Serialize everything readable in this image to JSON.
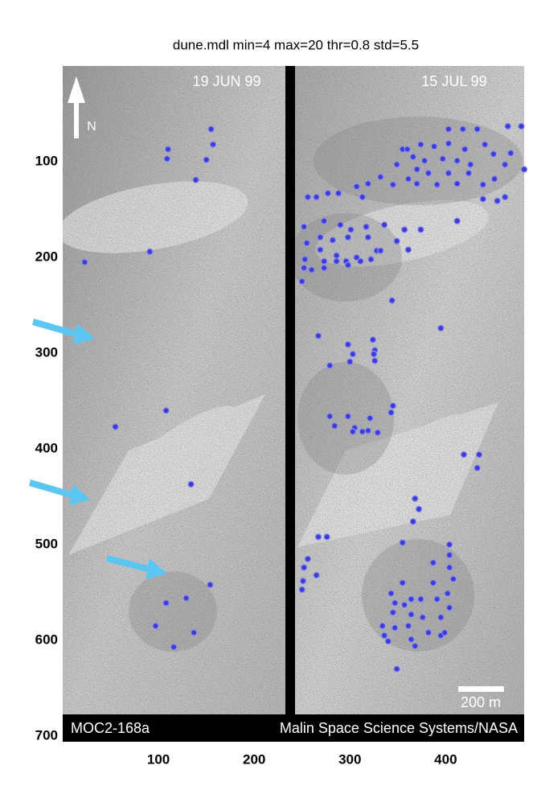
{
  "chart_data": {
    "type": "scatter",
    "title": "dune.mdl min=4 max=20 thr=0.8 std=5.5",
    "annotations": [
      "19 JUN 99",
      "15 JUL 99",
      "N",
      "200 m",
      "MOC2-168a",
      "Malin Space Science Systems/NASA"
    ],
    "xlim": [
      0,
      482
    ],
    "ylim": [
      706,
      0
    ],
    "xticks": [
      100,
      200,
      300,
      400
    ],
    "yticks": [
      100,
      200,
      300,
      400,
      500,
      600,
      700
    ],
    "grid": false,
    "x": [
      155,
      157,
      110,
      109,
      150,
      139,
      91,
      23,
      108,
      55,
      134,
      154,
      108,
      129,
      97,
      137,
      116,
      403,
      418,
      433,
      465,
      479,
      374,
      388,
      403,
      420,
      441,
      468,
      355,
      360,
      366,
      378,
      397,
      412,
      426,
      450,
      462,
      482,
      349,
      370,
      382,
      403,
      424,
      361,
      370,
      391,
      412,
      439,
      451,
      345,
      332,
      319,
      307,
      288,
      277,
      265,
      256,
      313,
      439,
      454,
      462,
      412,
      252,
      273,
      290,
      301,
      317,
      336,
      357,
      374,
      269,
      282,
      298,
      319,
      349,
      361,
      255,
      269,
      286,
      307,
      328,
      253,
      273,
      296,
      311,
      322,
      332,
      252,
      260,
      273,
      286,
      298,
      250,
      395,
      344,
      267,
      298,
      324,
      326,
      303,
      300,
      325,
      326,
      279,
      345,
      343,
      279,
      298,
      305,
      321,
      284,
      303,
      313,
      319,
      329,
      419,
      435,
      433,
      368,
      372,
      366,
      276,
      267,
      256,
      252,
      265,
      251,
      250,
      355,
      404,
      387,
      404,
      404,
      387,
      408,
      402,
      343,
      355,
      364,
      347,
      357,
      374,
      391,
      404,
      345,
      364,
      376,
      395,
      334,
      347,
      361,
      336,
      340,
      364,
      382,
      395,
      399,
      368,
      349
    ],
    "series": [
      {
        "color": "#3c3cd6",
        "values": [
          66,
          82,
          87,
          97,
          98,
          119,
          194,
          205,
          360,
          377,
          437,
          542,
          561,
          556,
          585,
          592,
          607,
          66,
          66,
          66,
          63,
          63,
          82,
          84,
          81,
          87,
          82,
          91,
          87,
          87,
          95,
          99,
          97,
          99,
          103,
          92,
          103,
          108,
          103,
          108,
          112,
          112,
          112,
          118,
          123,
          124,
          123,
          124,
          118,
          124,
          116,
          123,
          126,
          133,
          133,
          137,
          137,
          137,
          139,
          141,
          137,
          162,
          168,
          162,
          166,
          171,
          168,
          166,
          171,
          171,
          179,
          182,
          179,
          179,
          183,
          192,
          185,
          192,
          198,
          200,
          193,
          202,
          204,
          204,
          204,
          202,
          193,
          211,
          213,
          211,
          204,
          208,
          225,
          274,
          245,
          282,
          291,
          286,
          297,
          301,
          309,
          301,
          308,
          313,
          355,
          362,
          366,
          366,
          378,
          368,
          376,
          382,
          382,
          381,
          383,
          406,
          406,
          420,
          452,
          463,
          476,
          492,
          492,
          515,
          524,
          532,
          538,
          547,
          498,
          500,
          519,
          511,
          524,
          540,
          536,
          551,
          551,
          540,
          557,
          561,
          563,
          557,
          557,
          566,
          571,
          573,
          576,
          576,
          585,
          587,
          585,
          595,
          601,
          599,
          592,
          595,
          592,
          606,
          630
        ]
      }
    ]
  }
}
